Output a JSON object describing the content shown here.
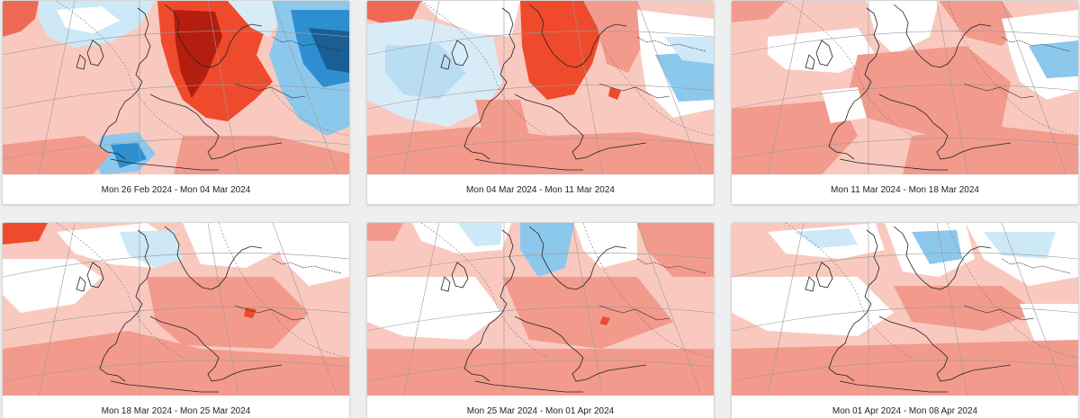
{
  "colors": {
    "page_background": "#efefef",
    "card_background": "#ffffff",
    "anomaly_warm_light": "#f9c9bf",
    "anomaly_warm_mid": "#f29a8c",
    "anomaly_warm_strong": "#ef4a2c",
    "anomaly_warm_extreme": "#b41e0f",
    "anomaly_cold_light": "#d8ecf8",
    "anomaly_cold_mid": "#8cc8ec",
    "anomaly_cold_strong": "#2e8fd0",
    "anomaly_cold_extreme": "#1a5e93",
    "neutral": "#ffffff"
  },
  "forecasts": [
    {
      "period": "Mon 26 Feb 2024 - Mon 04 Mar 2024",
      "map_icon": "temperature-anomaly-map"
    },
    {
      "period": "Mon 04 Mar 2024 - Mon 11 Mar 2024",
      "map_icon": "temperature-anomaly-map"
    },
    {
      "period": "Mon 11 Mar 2024 - Mon 18 Mar 2024",
      "map_icon": "temperature-anomaly-map"
    },
    {
      "period": "Mon 18 Mar 2024 - Mon 25 Mar 2024",
      "map_icon": "temperature-anomaly-map"
    },
    {
      "period": "Mon 25 Mar 2024 - Mon 01 Apr 2024",
      "map_icon": "temperature-anomaly-map"
    },
    {
      "period": "Mon 01 Apr 2024 - Mon 08 Apr 2024",
      "map_icon": "temperature-anomaly-map"
    }
  ]
}
